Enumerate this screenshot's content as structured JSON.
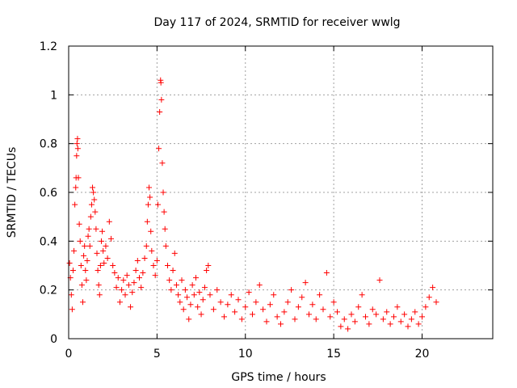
{
  "chart_data": {
    "type": "scatter",
    "title": "Day 117 of 2024, SRMTID for receiver wwlg",
    "xlabel": "GPS time / hours",
    "ylabel": "SRMTID / TECUs",
    "xlim": [
      0,
      24
    ],
    "ylim": [
      0,
      1.2
    ],
    "xticks": [
      0,
      5,
      10,
      15,
      20
    ],
    "xtick_labels": [
      "0",
      "5",
      "10",
      "15",
      "20"
    ],
    "yticks": [
      0,
      0.2,
      0.4,
      0.6,
      0.8,
      1.0,
      1.2
    ],
    "ytick_labels": [
      "0",
      "0.2",
      "0.4",
      "0.6",
      "0.8",
      "1",
      "1.2"
    ],
    "grid": true,
    "marker": "+",
    "color": "#ff0000",
    "series": [
      {
        "name": "SRMTID",
        "points": [
          [
            0.05,
            0.31
          ],
          [
            0.1,
            0.25
          ],
          [
            0.15,
            0.18
          ],
          [
            0.2,
            0.12
          ],
          [
            0.25,
            0.28
          ],
          [
            0.3,
            0.36
          ],
          [
            0.35,
            0.55
          ],
          [
            0.4,
            0.62
          ],
          [
            0.42,
            0.66
          ],
          [
            0.45,
            0.75
          ],
          [
            0.47,
            0.8
          ],
          [
            0.5,
            0.82
          ],
          [
            0.52,
            0.78
          ],
          [
            0.55,
            0.66
          ],
          [
            0.6,
            0.47
          ],
          [
            0.65,
            0.4
          ],
          [
            0.7,
            0.3
          ],
          [
            0.75,
            0.22
          ],
          [
            0.8,
            0.15
          ],
          [
            0.85,
            0.34
          ],
          [
            0.9,
            0.38
          ],
          [
            0.95,
            0.28
          ],
          [
            1.0,
            0.24
          ],
          [
            1.05,
            0.32
          ],
          [
            1.1,
            0.42
          ],
          [
            1.15,
            0.45
          ],
          [
            1.2,
            0.38
          ],
          [
            1.25,
            0.5
          ],
          [
            1.3,
            0.55
          ],
          [
            1.35,
            0.62
          ],
          [
            1.4,
            0.6
          ],
          [
            1.45,
            0.57
          ],
          [
            1.5,
            0.52
          ],
          [
            1.55,
            0.45
          ],
          [
            1.6,
            0.35
          ],
          [
            1.65,
            0.28
          ],
          [
            1.7,
            0.22
          ],
          [
            1.75,
            0.18
          ],
          [
            1.8,
            0.3
          ],
          [
            1.85,
            0.4
          ],
          [
            1.9,
            0.44
          ],
          [
            1.95,
            0.36
          ],
          [
            2.0,
            0.31
          ],
          [
            2.1,
            0.38
          ],
          [
            2.2,
            0.33
          ],
          [
            2.3,
            0.48
          ],
          [
            2.4,
            0.41
          ],
          [
            2.5,
            0.3
          ],
          [
            2.6,
            0.27
          ],
          [
            2.7,
            0.21
          ],
          [
            2.8,
            0.25
          ],
          [
            2.9,
            0.15
          ],
          [
            3.0,
            0.2
          ],
          [
            3.1,
            0.24
          ],
          [
            3.2,
            0.18
          ],
          [
            3.3,
            0.26
          ],
          [
            3.4,
            0.22
          ],
          [
            3.5,
            0.13
          ],
          [
            3.6,
            0.19
          ],
          [
            3.7,
            0.23
          ],
          [
            3.8,
            0.28
          ],
          [
            3.9,
            0.32
          ],
          [
            4.0,
            0.25
          ],
          [
            4.1,
            0.21
          ],
          [
            4.2,
            0.27
          ],
          [
            4.3,
            0.33
          ],
          [
            4.4,
            0.38
          ],
          [
            4.45,
            0.48
          ],
          [
            4.5,
            0.55
          ],
          [
            4.55,
            0.62
          ],
          [
            4.6,
            0.58
          ],
          [
            4.65,
            0.44
          ],
          [
            4.7,
            0.36
          ],
          [
            4.8,
            0.3
          ],
          [
            4.9,
            0.26
          ],
          [
            5.0,
            0.32
          ],
          [
            5.05,
            0.55
          ],
          [
            5.1,
            0.78
          ],
          [
            5.15,
            0.93
          ],
          [
            5.2,
            1.06
          ],
          [
            5.22,
            1.05
          ],
          [
            5.25,
            0.98
          ],
          [
            5.3,
            0.72
          ],
          [
            5.35,
            0.6
          ],
          [
            5.4,
            0.52
          ],
          [
            5.45,
            0.45
          ],
          [
            5.5,
            0.38
          ],
          [
            5.6,
            0.3
          ],
          [
            5.7,
            0.24
          ],
          [
            5.8,
            0.2
          ],
          [
            5.9,
            0.28
          ],
          [
            6.0,
            0.35
          ],
          [
            6.1,
            0.22
          ],
          [
            6.2,
            0.18
          ],
          [
            6.3,
            0.15
          ],
          [
            6.4,
            0.24
          ],
          [
            6.5,
            0.12
          ],
          [
            6.6,
            0.2
          ],
          [
            6.7,
            0.17
          ],
          [
            6.8,
            0.08
          ],
          [
            6.9,
            0.14
          ],
          [
            7.0,
            0.22
          ],
          [
            7.1,
            0.18
          ],
          [
            7.2,
            0.25
          ],
          [
            7.3,
            0.13
          ],
          [
            7.4,
            0.19
          ],
          [
            7.5,
            0.1
          ],
          [
            7.6,
            0.16
          ],
          [
            7.7,
            0.21
          ],
          [
            7.8,
            0.28
          ],
          [
            7.9,
            0.3
          ],
          [
            8.0,
            0.18
          ],
          [
            8.2,
            0.12
          ],
          [
            8.4,
            0.2
          ],
          [
            8.6,
            0.15
          ],
          [
            8.8,
            0.09
          ],
          [
            9.0,
            0.14
          ],
          [
            9.2,
            0.18
          ],
          [
            9.4,
            0.11
          ],
          [
            9.6,
            0.16
          ],
          [
            9.8,
            0.08
          ],
          [
            10.0,
            0.13
          ],
          [
            10.2,
            0.19
          ],
          [
            10.4,
            0.1
          ],
          [
            10.6,
            0.15
          ],
          [
            10.8,
            0.22
          ],
          [
            11.0,
            0.12
          ],
          [
            11.2,
            0.07
          ],
          [
            11.4,
            0.14
          ],
          [
            11.6,
            0.18
          ],
          [
            11.8,
            0.09
          ],
          [
            12.0,
            0.06
          ],
          [
            12.2,
            0.11
          ],
          [
            12.4,
            0.15
          ],
          [
            12.6,
            0.2
          ],
          [
            12.8,
            0.08
          ],
          [
            13.0,
            0.13
          ],
          [
            13.2,
            0.17
          ],
          [
            13.4,
            0.23
          ],
          [
            13.6,
            0.1
          ],
          [
            13.8,
            0.14
          ],
          [
            14.0,
            0.08
          ],
          [
            14.2,
            0.18
          ],
          [
            14.4,
            0.12
          ],
          [
            14.6,
            0.27
          ],
          [
            14.8,
            0.09
          ],
          [
            15.0,
            0.15
          ],
          [
            15.2,
            0.11
          ],
          [
            15.4,
            0.05
          ],
          [
            15.6,
            0.08
          ],
          [
            15.8,
            0.04
          ],
          [
            16.0,
            0.1
          ],
          [
            16.2,
            0.07
          ],
          [
            16.4,
            0.13
          ],
          [
            16.6,
            0.18
          ],
          [
            16.8,
            0.09
          ],
          [
            17.0,
            0.06
          ],
          [
            17.2,
            0.12
          ],
          [
            17.4,
            0.1
          ],
          [
            17.6,
            0.24
          ],
          [
            17.8,
            0.08
          ],
          [
            18.0,
            0.11
          ],
          [
            18.2,
            0.06
          ],
          [
            18.4,
            0.09
          ],
          [
            18.6,
            0.13
          ],
          [
            18.8,
            0.07
          ],
          [
            19.0,
            0.1
          ],
          [
            19.2,
            0.05
          ],
          [
            19.4,
            0.08
          ],
          [
            19.6,
            0.11
          ],
          [
            19.8,
            0.06
          ],
          [
            20.0,
            0.09
          ],
          [
            20.2,
            0.13
          ],
          [
            20.4,
            0.17
          ],
          [
            20.6,
            0.21
          ],
          [
            20.8,
            0.15
          ]
        ]
      }
    ]
  }
}
